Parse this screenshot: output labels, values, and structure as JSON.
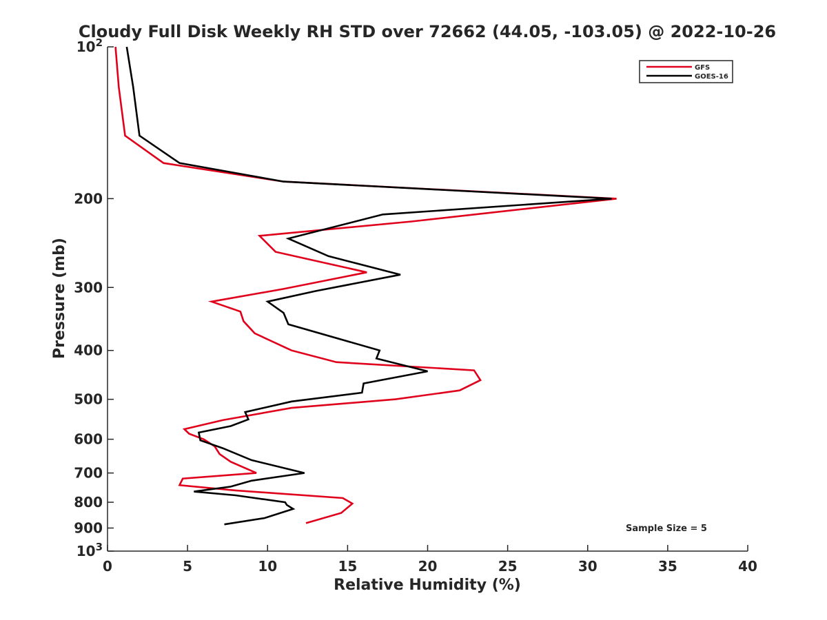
{
  "chart_data": {
    "type": "line",
    "title": "Cloudy Full Disk Weekly RH STD over 72662 (44.05, -103.05) @ 2022-10-26",
    "xlabel": "Relative Humidity (%)",
    "ylabel": "Pressure (mb)",
    "xlim": [
      0,
      40
    ],
    "ylim": [
      100,
      1000
    ],
    "y_scale": "log",
    "y_reversed": true,
    "grid": false,
    "legend_position": "top-right",
    "annotation": "Sample Size = 5",
    "x_ticks": [
      {
        "value": 0,
        "label": "0"
      },
      {
        "value": 5,
        "label": "5"
      },
      {
        "value": 10,
        "label": "10"
      },
      {
        "value": 15,
        "label": "15"
      },
      {
        "value": 20,
        "label": "20"
      },
      {
        "value": 25,
        "label": "25"
      },
      {
        "value": 30,
        "label": "30"
      },
      {
        "value": 35,
        "label": "35"
      },
      {
        "value": 40,
        "label": "40"
      }
    ],
    "y_ticks": [
      {
        "value": 100,
        "base": "10",
        "exp": "2"
      },
      {
        "value": 200,
        "label": "200"
      },
      {
        "value": 300,
        "label": "300"
      },
      {
        "value": 400,
        "label": "400"
      },
      {
        "value": 500,
        "label": "500"
      },
      {
        "value": 600,
        "label": "600"
      },
      {
        "value": 700,
        "label": "700"
      },
      {
        "value": 800,
        "label": "800"
      },
      {
        "value": 900,
        "label": "900"
      },
      {
        "value": 1000,
        "base": "10",
        "exp": "3"
      }
    ],
    "series": [
      {
        "name": "GFS",
        "color": "#e0001b",
        "points": [
          [
            0.5,
            100
          ],
          [
            0.7,
            120
          ],
          [
            1.1,
            150
          ],
          [
            3.5,
            170
          ],
          [
            11.0,
            185
          ],
          [
            31.8,
            200
          ],
          [
            19.0,
            222
          ],
          [
            9.5,
            237
          ],
          [
            10.5,
            255
          ],
          [
            16.2,
            280
          ],
          [
            11.0,
            302
          ],
          [
            6.5,
            320
          ],
          [
            8.3,
            335
          ],
          [
            8.5,
            350
          ],
          [
            9.2,
            370
          ],
          [
            11.5,
            400
          ],
          [
            14.3,
            422
          ],
          [
            22.9,
            438
          ],
          [
            23.3,
            458
          ],
          [
            22.0,
            480
          ],
          [
            18.0,
            500
          ],
          [
            11.5,
            520
          ],
          [
            7.2,
            550
          ],
          [
            4.8,
            573
          ],
          [
            5.1,
            585
          ],
          [
            6.0,
            600
          ],
          [
            6.7,
            620
          ],
          [
            7.0,
            642
          ],
          [
            7.7,
            665
          ],
          [
            9.3,
            700
          ],
          [
            4.7,
            718
          ],
          [
            4.5,
            740
          ],
          [
            8.0,
            758
          ],
          [
            14.7,
            785
          ],
          [
            15.3,
            805
          ],
          [
            14.6,
            840
          ],
          [
            12.4,
            880
          ]
        ]
      },
      {
        "name": "GOES-16",
        "color": "#000000",
        "points": [
          [
            1.2,
            100
          ],
          [
            1.6,
            120
          ],
          [
            2.0,
            150
          ],
          [
            4.5,
            170
          ],
          [
            11.0,
            185
          ],
          [
            31.5,
            200
          ],
          [
            17.2,
            215
          ],
          [
            11.3,
            240
          ],
          [
            13.8,
            260
          ],
          [
            18.3,
            283
          ],
          [
            13.0,
            305
          ],
          [
            10.0,
            320
          ],
          [
            11.0,
            337
          ],
          [
            11.3,
            355
          ],
          [
            17.0,
            400
          ],
          [
            16.8,
            415
          ],
          [
            20.0,
            440
          ],
          [
            16.0,
            465
          ],
          [
            15.9,
            485
          ],
          [
            11.5,
            505
          ],
          [
            8.6,
            530
          ],
          [
            8.8,
            548
          ],
          [
            7.7,
            565
          ],
          [
            5.7,
            582
          ],
          [
            5.8,
            603
          ],
          [
            7.2,
            625
          ],
          [
            9.0,
            660
          ],
          [
            12.3,
            700
          ],
          [
            9.0,
            725
          ],
          [
            7.7,
            745
          ],
          [
            5.4,
            762
          ],
          [
            8.0,
            775
          ],
          [
            11.1,
            800
          ],
          [
            11.2,
            810
          ],
          [
            11.6,
            825
          ],
          [
            9.8,
            860
          ],
          [
            7.3,
            885
          ]
        ]
      }
    ]
  }
}
